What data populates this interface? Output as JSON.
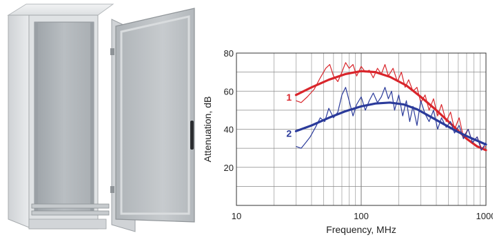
{
  "chart_data": {
    "type": "line",
    "title": "",
    "xlabel": "Frequency, MHz",
    "ylabel": "Attenuation, dB",
    "xscale": "log",
    "xlim": [
      10,
      1000
    ],
    "ylim": [
      0,
      80
    ],
    "grid": true,
    "x_ticks": [
      10,
      100,
      1000
    ],
    "x_tick_labels": [
      "10",
      "100",
      "1000"
    ],
    "y_ticks": [
      20,
      40,
      60,
      80
    ],
    "y_tick_labels": [
      "20",
      "40",
      "60",
      "80"
    ],
    "series": [
      {
        "name": "1",
        "color": "#d9252b",
        "smooth": {
          "x": [
            30,
            40,
            55,
            75,
            100,
            130,
            170,
            230,
            300,
            400,
            520,
            700,
            850,
            1000
          ],
          "y": [
            58,
            62,
            66,
            69,
            70.5,
            70,
            67.5,
            63,
            57,
            50,
            43,
            35,
            31,
            29
          ]
        },
        "raw": {
          "x": [
            30,
            33,
            37,
            42,
            47,
            52,
            56,
            60,
            65,
            70,
            75,
            80,
            86,
            92,
            100,
            108,
            116,
            125,
            135,
            145,
            155,
            165,
            180,
            195,
            210,
            225,
            240,
            260,
            280,
            300,
            325,
            350,
            380,
            410,
            440,
            480,
            520,
            560,
            610,
            660,
            720,
            780,
            850,
            920,
            1000
          ],
          "y": [
            55,
            54,
            57,
            61,
            67,
            72,
            74,
            68,
            65,
            70,
            75,
            72,
            74,
            68,
            73,
            70,
            71,
            67,
            72,
            69,
            74,
            68,
            72,
            65,
            70,
            62,
            66,
            60,
            62,
            54,
            58,
            50,
            56,
            47,
            53,
            44,
            49,
            40,
            46,
            36,
            40,
            33,
            36,
            30,
            31
          ]
        }
      },
      {
        "name": "2",
        "color": "#2a3a9a",
        "smooth": {
          "x": [
            30,
            40,
            55,
            75,
            100,
            130,
            170,
            220,
            280,
            350,
            450,
            580,
            750,
            1000
          ],
          "y": [
            39,
            42,
            46,
            49.5,
            52,
            53.5,
            54,
            53,
            50.5,
            47,
            43,
            39,
            35.5,
            32
          ]
        },
        "raw": {
          "x": [
            30,
            33,
            36,
            39,
            43,
            47,
            51,
            55,
            60,
            65,
            70,
            75,
            80,
            86,
            92,
            100,
            108,
            116,
            125,
            135,
            145,
            155,
            165,
            175,
            185,
            200,
            215,
            230,
            245,
            260,
            280,
            300,
            325,
            350,
            380,
            410,
            440,
            480,
            520,
            560,
            610,
            660,
            720,
            780,
            850,
            920,
            1000
          ],
          "y": [
            31,
            30,
            33,
            36,
            41,
            46,
            44,
            51,
            46,
            49,
            58,
            62,
            55,
            47,
            53,
            57,
            50,
            55,
            59,
            54,
            57,
            62,
            56,
            60,
            50,
            58,
            47,
            55,
            44,
            52,
            42,
            55,
            48,
            44,
            50,
            40,
            46,
            41,
            44,
            38,
            42,
            35,
            40,
            33,
            36,
            29,
            33
          ]
        }
      }
    ]
  },
  "cabinet_image": {
    "description_icon": "open-enclosure-cabinet-icon"
  }
}
